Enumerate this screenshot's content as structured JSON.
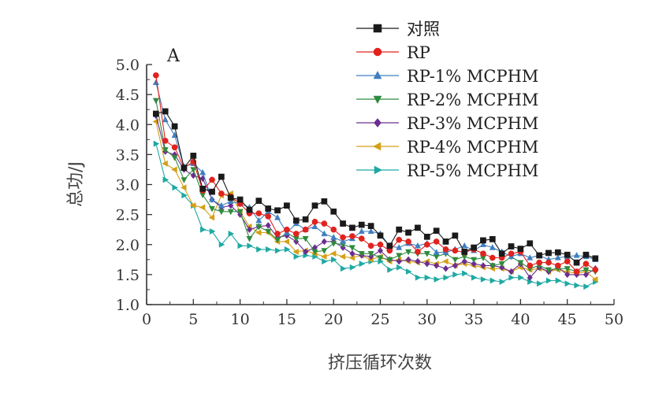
{
  "chart_data": {
    "type": "line",
    "panel_label": "A",
    "xlabel": "挤压循环次数",
    "ylabel": "总功/J",
    "xlim": [
      0,
      50
    ],
    "ylim": [
      1.0,
      5.0
    ],
    "x_ticks": [
      0,
      5,
      10,
      15,
      20,
      25,
      30,
      35,
      40,
      45,
      50
    ],
    "y_ticks": [
      1.0,
      1.5,
      2.0,
      2.5,
      3.0,
      3.5,
      4.0,
      4.5,
      5.0
    ],
    "grid": false,
    "legend_position": "top-right",
    "x": [
      1,
      2,
      3,
      4,
      5,
      6,
      7,
      8,
      9,
      10,
      11,
      12,
      13,
      14,
      15,
      16,
      17,
      18,
      19,
      20,
      21,
      22,
      23,
      24,
      25,
      26,
      27,
      28,
      29,
      30,
      31,
      32,
      33,
      34,
      35,
      36,
      37,
      38,
      39,
      40,
      41,
      42,
      43,
      44,
      45,
      46,
      47,
      48
    ],
    "series": [
      {
        "name": "对照",
        "color": "#1a1a1a",
        "marker": "square",
        "values": [
          4.18,
          4.22,
          3.97,
          3.28,
          3.48,
          2.93,
          2.88,
          3.13,
          2.78,
          2.75,
          2.58,
          2.73,
          2.6,
          2.57,
          2.65,
          2.4,
          2.42,
          2.65,
          2.72,
          2.55,
          2.35,
          2.28,
          2.33,
          2.31,
          2.15,
          1.98,
          2.25,
          2.2,
          2.28,
          2.13,
          2.23,
          2.05,
          2.15,
          1.88,
          1.95,
          2.07,
          2.09,
          1.85,
          1.97,
          1.93,
          2.02,
          1.82,
          1.86,
          1.87,
          1.83,
          1.7,
          1.83,
          1.77
        ]
      },
      {
        "name": "RP",
        "color": "#e0231f",
        "marker": "circle",
        "values": [
          4.82,
          3.73,
          3.62,
          3.28,
          3.38,
          2.9,
          3.08,
          2.85,
          2.8,
          2.68,
          2.52,
          2.52,
          2.47,
          2.18,
          2.25,
          2.18,
          2.25,
          2.38,
          2.35,
          2.25,
          2.12,
          2.14,
          2.1,
          1.98,
          2.0,
          1.9,
          2.08,
          2.05,
          1.88,
          2.0,
          2.05,
          1.92,
          1.9,
          1.87,
          1.92,
          1.85,
          1.78,
          1.78,
          1.85,
          1.88,
          1.65,
          1.7,
          1.7,
          1.65,
          1.72,
          1.55,
          1.68,
          1.58
        ]
      },
      {
        "name": "RP-1% MCPHM",
        "color": "#3f7fc0",
        "marker": "triangle-up",
        "values": [
          4.7,
          4.08,
          3.82,
          3.3,
          3.35,
          3.2,
          2.75,
          2.65,
          2.72,
          2.68,
          2.62,
          2.4,
          2.55,
          2.45,
          2.2,
          2.35,
          2.25,
          2.3,
          2.18,
          2.12,
          2.05,
          2.1,
          2.22,
          2.22,
          2.18,
          1.97,
          1.95,
          2.02,
          1.98,
          2.02,
          1.87,
          1.87,
          1.92,
          1.98,
          1.9,
          2.0,
          1.95,
          1.88,
          1.8,
          1.85,
          1.78,
          1.82,
          1.75,
          1.78,
          1.8,
          1.82,
          1.8,
          1.75
        ]
      },
      {
        "name": "RP-2% MCPHM",
        "color": "#2e8b3e",
        "marker": "triangle-down",
        "values": [
          4.4,
          3.58,
          3.45,
          3.08,
          3.25,
          2.83,
          2.6,
          2.55,
          2.55,
          2.55,
          2.1,
          2.3,
          2.22,
          2.08,
          2.2,
          2.1,
          2.1,
          1.88,
          1.9,
          2.02,
          2.0,
          1.95,
          1.85,
          1.85,
          1.78,
          1.75,
          1.82,
          1.88,
          1.85,
          1.85,
          1.8,
          1.85,
          1.75,
          1.8,
          1.75,
          1.78,
          1.65,
          1.68,
          1.8,
          1.7,
          1.6,
          1.65,
          1.58,
          1.6,
          1.6,
          1.55,
          1.58,
          1.55
        ]
      },
      {
        "name": "RP-3% MCPHM",
        "color": "#6b2d8f",
        "marker": "diamond",
        "values": [
          4.15,
          3.55,
          3.5,
          3.25,
          3.15,
          3.1,
          2.75,
          2.62,
          2.65,
          2.5,
          2.25,
          2.3,
          2.32,
          2.12,
          2.15,
          2.05,
          1.88,
          1.95,
          2.05,
          2.05,
          1.95,
          1.85,
          1.82,
          1.8,
          1.9,
          1.75,
          1.72,
          1.75,
          1.72,
          1.68,
          1.65,
          1.6,
          1.65,
          1.72,
          1.68,
          1.65,
          1.65,
          1.62,
          1.55,
          1.68,
          1.45,
          1.62,
          1.55,
          1.62,
          1.5,
          1.5,
          1.5,
          1.6
        ]
      },
      {
        "name": "RP-4% MCPHM",
        "color": "#d4a017",
        "marker": "triangle-left",
        "values": [
          4.05,
          3.35,
          3.25,
          2.95,
          2.65,
          2.62,
          2.45,
          2.82,
          2.85,
          2.55,
          2.3,
          2.2,
          2.2,
          2.05,
          2.05,
          1.88,
          1.9,
          1.85,
          1.8,
          1.85,
          1.8,
          1.78,
          1.82,
          1.75,
          1.8,
          1.72,
          1.75,
          1.72,
          1.7,
          1.72,
          1.68,
          1.72,
          1.65,
          1.68,
          1.65,
          1.62,
          1.6,
          1.6,
          1.55,
          1.62,
          1.58,
          1.6,
          1.55,
          1.58,
          1.55,
          1.52,
          1.55,
          1.42
        ]
      },
      {
        "name": "RP-5% MCPHM",
        "color": "#1fa9a3",
        "marker": "triangle-right",
        "values": [
          3.68,
          3.08,
          2.95,
          2.82,
          2.65,
          2.25,
          2.22,
          2.0,
          2.18,
          1.98,
          1.98,
          1.92,
          1.92,
          1.9,
          1.92,
          1.8,
          1.82,
          1.8,
          1.72,
          1.75,
          1.6,
          1.62,
          1.68,
          1.72,
          1.72,
          1.58,
          1.62,
          1.55,
          1.45,
          1.45,
          1.42,
          1.45,
          1.5,
          1.52,
          1.45,
          1.42,
          1.4,
          1.38,
          1.45,
          1.45,
          1.38,
          1.35,
          1.4,
          1.4,
          1.35,
          1.32,
          1.3,
          1.38
        ]
      }
    ]
  }
}
